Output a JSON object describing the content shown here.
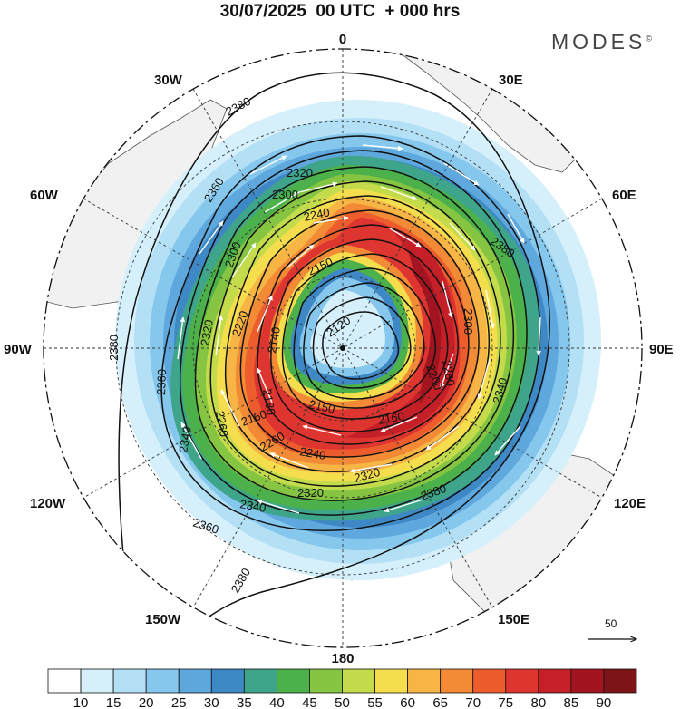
{
  "title": "30/07/2025  00 UTC  + 000 hrs",
  "logo": {
    "text": "MODES",
    "mark": "©"
  },
  "longitude_labels": [
    {
      "key": "0",
      "text": "0"
    },
    {
      "key": "30E",
      "text": "30E"
    },
    {
      "key": "60E",
      "text": "60E"
    },
    {
      "key": "90E",
      "text": "90E"
    },
    {
      "key": "120E",
      "text": "120E"
    },
    {
      "key": "150E",
      "text": "150E"
    },
    {
      "key": "180",
      "text": "180"
    },
    {
      "key": "150W",
      "text": "150W"
    },
    {
      "key": "120W",
      "text": "120W"
    },
    {
      "key": "90W",
      "text": "90W"
    },
    {
      "key": "60W",
      "text": "60W"
    },
    {
      "key": "30W",
      "text": "30W"
    }
  ],
  "contour_labels": [
    "2380",
    "2380",
    "2380",
    "2380",
    "2380",
    "2360",
    "2360",
    "2360",
    "2340",
    "2340",
    "2340",
    "2320",
    "2320",
    "2320",
    "2320",
    "2300",
    "2300",
    "2300",
    "2280",
    "2260",
    "2260",
    "2240",
    "2240",
    "2220",
    "2200",
    "2180",
    "2160",
    "2160",
    "2150",
    "2150",
    "2140",
    "2120"
  ],
  "wind_reference": {
    "label": "50",
    "icon": "arrow-right-icon"
  },
  "colorbar": {
    "labels": [
      "10",
      "15",
      "20",
      "25",
      "30",
      "35",
      "40",
      "45",
      "50",
      "55",
      "60",
      "65",
      "70",
      "75",
      "80",
      "85",
      "90"
    ],
    "colors": [
      "#ffffff",
      "#d6f0fb",
      "#b4e0f5",
      "#86c7ee",
      "#5ea8de",
      "#3f88c6",
      "#3fa58a",
      "#4cb14a",
      "#86c541",
      "#c4dc4b",
      "#f5de4d",
      "#f6b545",
      "#f28a36",
      "#ec5c2d",
      "#df3530",
      "#c51f28",
      "#a21420",
      "#7c1418"
    ]
  },
  "chart_data": {
    "type": "heatmap",
    "projection": "south polar stereographic",
    "title": "30/07/2025  00 UTC  + 000 hrs",
    "variable": "wind speed (shaded) with geopotential height contours and wind vectors",
    "shading_levels": [
      10,
      15,
      20,
      25,
      30,
      35,
      40,
      45,
      50,
      55,
      60,
      65,
      70,
      75,
      80,
      85,
      90
    ],
    "contour_levels": [
      2120,
      2140,
      2150,
      2160,
      2180,
      2200,
      2220,
      2240,
      2260,
      2280,
      2300,
      2320,
      2340,
      2360,
      2380
    ],
    "jet_max_class": "85-90",
    "jet_max_region": "60E-120E sector",
    "reference_vector": 50
  }
}
